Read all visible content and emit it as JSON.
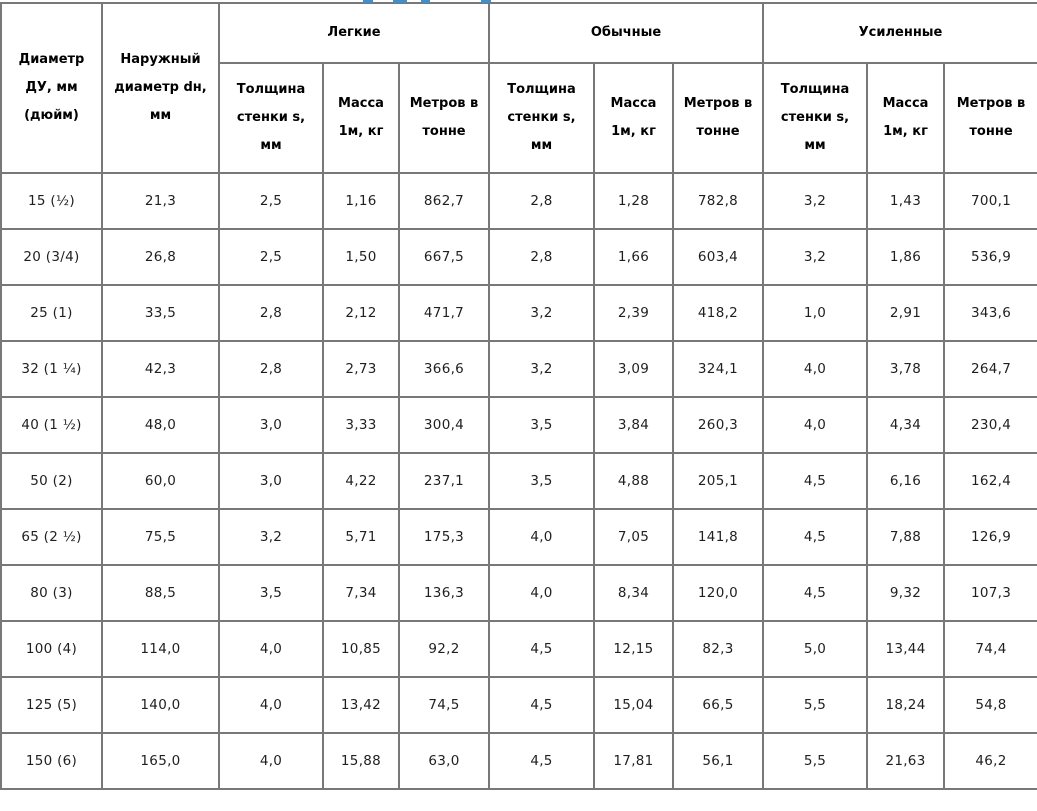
{
  "page": {
    "clipped_title_color": "#3f8fcd"
  },
  "table": {
    "header": {
      "col_diameter": "Диаметр ДУ, мм (дюйм)",
      "col_outer_diameter": "Наружный диаметр dн, мм",
      "groups": [
        {
          "label": "Легкие"
        },
        {
          "label": "Обычные"
        },
        {
          "label": "Усиленные"
        }
      ],
      "sub_columns": [
        "Толщина стенки s, мм",
        "Масса 1м, кг",
        "Метров в тонне"
      ]
    },
    "rows": [
      [
        "15 (½)",
        "21,3",
        "2,5",
        "1,16",
        "862,7",
        "2,8",
        "1,28",
        "782,8",
        "3,2",
        "1,43",
        "700,1"
      ],
      [
        "20 (3/4)",
        "26,8",
        "2,5",
        "1,50",
        "667,5",
        "2,8",
        "1,66",
        "603,4",
        "3,2",
        "1,86",
        "536,9"
      ],
      [
        "25 (1)",
        "33,5",
        "2,8",
        "2,12",
        "471,7",
        "3,2",
        "2,39",
        "418,2",
        "1,0",
        "2,91",
        "343,6"
      ],
      [
        "32 (1 ¼)",
        "42,3",
        "2,8",
        "2,73",
        "366,6",
        "3,2",
        "3,09",
        "324,1",
        "4,0",
        "3,78",
        "264,7"
      ],
      [
        "40 (1 ½)",
        "48,0",
        "3,0",
        "3,33",
        "300,4",
        "3,5",
        "3,84",
        "260,3",
        "4,0",
        "4,34",
        "230,4"
      ],
      [
        "50 (2)",
        "60,0",
        "3,0",
        "4,22",
        "237,1",
        "3,5",
        "4,88",
        "205,1",
        "4,5",
        "6,16",
        "162,4"
      ],
      [
        "65 (2 ½)",
        "75,5",
        "3,2",
        "5,71",
        "175,3",
        "4,0",
        "7,05",
        "141,8",
        "4,5",
        "7,88",
        "126,9"
      ],
      [
        "80 (3)",
        "88,5",
        "3,5",
        "7,34",
        "136,3",
        "4,0",
        "8,34",
        "120,0",
        "4,5",
        "9,32",
        "107,3"
      ],
      [
        "100 (4)",
        "114,0",
        "4,0",
        "10,85",
        "92,2",
        "4,5",
        "12,15",
        "82,3",
        "5,0",
        "13,44",
        "74,4"
      ],
      [
        "125 (5)",
        "140,0",
        "4,0",
        "13,42",
        "74,5",
        "4,5",
        "15,04",
        "66,5",
        "5,5",
        "18,24",
        "54,8"
      ],
      [
        "150 (6)",
        "165,0",
        "4,0",
        "15,88",
        "63,0",
        "4,5",
        "17,81",
        "56,1",
        "5,5",
        "21,63",
        "46,2"
      ]
    ]
  }
}
